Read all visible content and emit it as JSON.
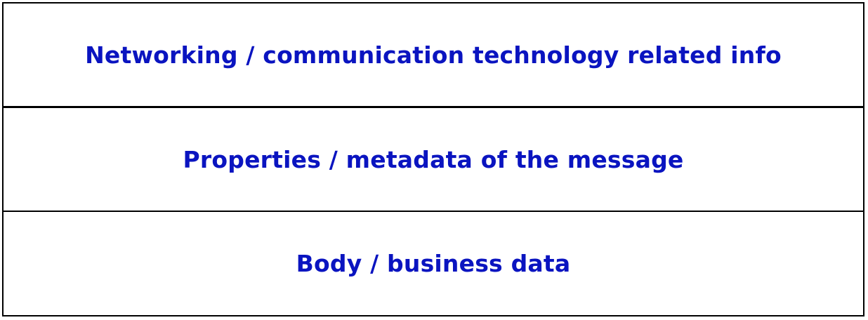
{
  "diagram": {
    "layers": [
      {
        "label": "Networking / communication technology related info"
      },
      {
        "label": "Properties / metadata of the message"
      },
      {
        "label": "Body / business data"
      }
    ]
  },
  "colors": {
    "text": "#0a14c0",
    "border": "#000000",
    "background": "#ffffff"
  }
}
